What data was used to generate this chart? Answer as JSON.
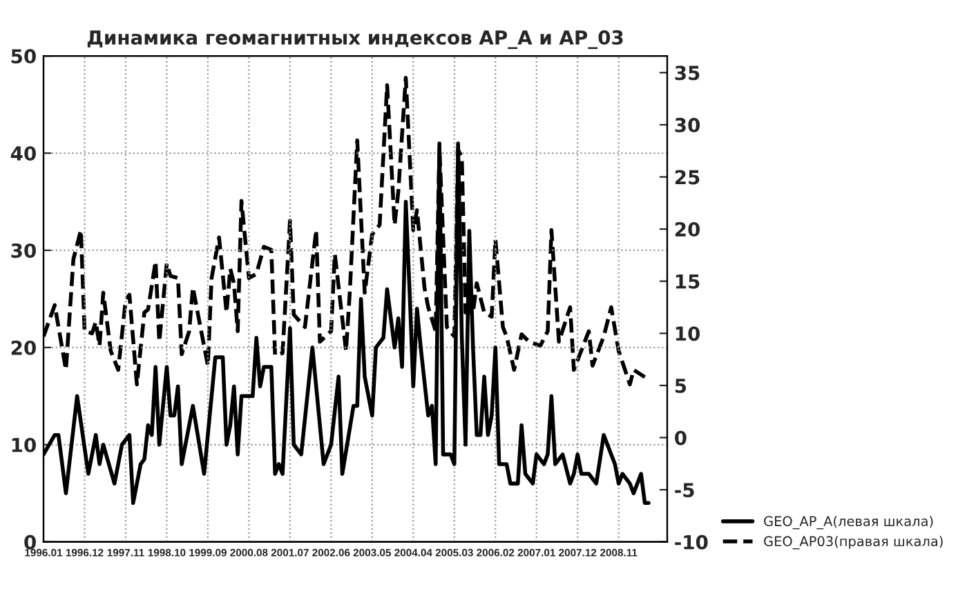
{
  "chart_data": {
    "type": "line",
    "title": "Динамика геомагнитных индексов AP_A и AP_03",
    "xlim": [
      "1996-01",
      "2009-12"
    ],
    "xticks": [
      {
        "value": "1996-01",
        "label": "1996.01"
      },
      {
        "value": "1996-12",
        "label": "1996.12"
      },
      {
        "value": "1997-11",
        "label": "1997.11"
      },
      {
        "value": "1998-10",
        "label": "1998.10"
      },
      {
        "value": "1999-09",
        "label": "1999.09"
      },
      {
        "value": "2000-08",
        "label": "2000.08"
      },
      {
        "value": "2001-07",
        "label": "2001.07"
      },
      {
        "value": "2002-06",
        "label": "2002.06"
      },
      {
        "value": "2003-05",
        "label": "2003.05"
      },
      {
        "value": "2004-04",
        "label": "2004.04"
      },
      {
        "value": "2005-03",
        "label": "2005.03"
      },
      {
        "value": "2006-02",
        "label": "2006.02"
      },
      {
        "value": "2007-01",
        "label": "2007.01"
      },
      {
        "value": "2007-12",
        "label": "2007.12"
      },
      {
        "value": "2008-11",
        "label": "2008.11"
      }
    ],
    "ylim": [
      0,
      50
    ],
    "yticks": [
      0,
      10,
      20,
      30,
      40,
      50
    ],
    "y2lim": [
      -10,
      36.6
    ],
    "y2ticks": [
      -10,
      -5,
      0,
      5,
      10,
      15,
      20,
      25,
      30,
      35
    ],
    "grid": true,
    "legend": "bottom right",
    "series": [
      {
        "name": "GEO_AP_A(левая шкала)",
        "color": "#000000",
        "line_style": "solid",
        "x": [
          "1996-01",
          "1996-04",
          "1996-05",
          "1996-07",
          "1996-10",
          "1997-01",
          "1997-03",
          "1997-04",
          "1997-05",
          "1997-08",
          "1997-10",
          "1997-12",
          "1998-01",
          "1998-03",
          "1998-04",
          "1998-05",
          "1998-06",
          "1998-07",
          "1998-08",
          "1998-10",
          "1998-11",
          "1998-12",
          "1999-01",
          "1999-02",
          "1999-05",
          "1999-08",
          "1999-11",
          "2000-01",
          "2000-02",
          "2000-03",
          "2000-04",
          "2000-05",
          "2000-06",
          "2000-09",
          "2000-10",
          "2000-11",
          "2000-12",
          "2001-02",
          "2001-03",
          "2001-04",
          "2001-05",
          "2001-07",
          "2001-08",
          "2001-10",
          "2002-01",
          "2002-04",
          "2002-06",
          "2002-08",
          "2002-09",
          "2002-12",
          "2003-01",
          "2003-02",
          "2003-03",
          "2003-05",
          "2003-06",
          "2003-08",
          "2003-09",
          "2003-11",
          "2003-12",
          "2004-01",
          "2004-02",
          "2004-03",
          "2004-04",
          "2004-05",
          "2004-06",
          "2004-08",
          "2004-09",
          "2004-10",
          "2004-11",
          "2004-12",
          "2005-02",
          "2005-03",
          "2005-04",
          "2005-05",
          "2005-06",
          "2005-07",
          "2005-08",
          "2005-09",
          "2005-10",
          "2005-11",
          "2005-12",
          "2006-01",
          "2006-02",
          "2006-03",
          "2006-05",
          "2006-06",
          "2006-08",
          "2006-09",
          "2006-10",
          "2006-12",
          "2007-01",
          "2007-03",
          "2007-04",
          "2007-05",
          "2007-06",
          "2007-08",
          "2007-10",
          "2007-11",
          "2007-12",
          "2008-01",
          "2008-03",
          "2008-05",
          "2008-07",
          "2008-10",
          "2008-11",
          "2008-12",
          "2009-02",
          "2009-03",
          "2009-05",
          "2009-06",
          "2009-07"
        ],
        "values": [
          9,
          11,
          11,
          5,
          15,
          7,
          11,
          8,
          10,
          6,
          10,
          11,
          4,
          8,
          8.5,
          12,
          11,
          18,
          10,
          18,
          13,
          13,
          16,
          8,
          14,
          7,
          19,
          19,
          10,
          12,
          16,
          9,
          15,
          15,
          21,
          16,
          18,
          18,
          7,
          8,
          7,
          22,
          10,
          9,
          20,
          8,
          10,
          17,
          7,
          14,
          14,
          25,
          17,
          13,
          20,
          21,
          26,
          20,
          23,
          18,
          35,
          26,
          16,
          24,
          20,
          13,
          14,
          8,
          41,
          9,
          9,
          8,
          41,
          21,
          10,
          32,
          20,
          11,
          11,
          17,
          11,
          13,
          20,
          8,
          8,
          6,
          6,
          12,
          7,
          6,
          9,
          8,
          9,
          15,
          8,
          9,
          6,
          7,
          9,
          7,
          7,
          6,
          11,
          8,
          6,
          7,
          6,
          5,
          7,
          4,
          4
        ]
      },
      {
        "name": "GEO_AP03(правая шкала)",
        "color": "#000000",
        "line_style": "dashed",
        "axis": "y2",
        "x": [
          "1996-01",
          "1996-04",
          "1996-07",
          "1996-09",
          "1996-11",
          "1996-12",
          "1997-02",
          "1997-03",
          "1997-04",
          "1997-05",
          "1997-07",
          "1997-09",
          "1997-11",
          "1997-12",
          "1998-02",
          "1998-04",
          "1998-05",
          "1998-07",
          "1998-08",
          "1998-10",
          "1998-11",
          "1999-01",
          "1999-02",
          "1999-04",
          "1999-05",
          "1999-06",
          "1999-09",
          "1999-10",
          "1999-12",
          "2000-02",
          "2000-03",
          "2000-04",
          "2000-05",
          "2000-06",
          "2000-08",
          "2000-10",
          "2000-12",
          "2001-02",
          "2001-03",
          "2001-05",
          "2001-07",
          "2001-08",
          "2001-11",
          "2002-02",
          "2002-03",
          "2002-06",
          "2002-07",
          "2002-10",
          "2002-11",
          "2003-01",
          "2003-03",
          "2003-05",
          "2003-07",
          "2003-09",
          "2003-11",
          "2003-12",
          "2004-02",
          "2004-04",
          "2004-05",
          "2004-07",
          "2004-08",
          "2004-10",
          "2004-11",
          "2005-01",
          "2005-03",
          "2005-04",
          "2005-05",
          "2005-06",
          "2005-08",
          "2005-09",
          "2005-11",
          "2006-01",
          "2006-02",
          "2006-04",
          "2006-05",
          "2006-07",
          "2006-09",
          "2006-11",
          "2007-02",
          "2007-04",
          "2007-05",
          "2007-07",
          "2007-10",
          "2007-11",
          "2008-03",
          "2008-04",
          "2008-07",
          "2008-09",
          "2008-11",
          "2009-02",
          "2009-03",
          "2009-06"
        ],
        "values": [
          9.7,
          12.7,
          6.5,
          17.1,
          19.9,
          10.2,
          10,
          11.1,
          8.8,
          13.9,
          8.3,
          6.5,
          13.2,
          13.7,
          5.1,
          12,
          12.3,
          16.9,
          9.2,
          16.7,
          15.5,
          15.3,
          8,
          10.2,
          14.4,
          12.5,
          6.9,
          15.3,
          19.2,
          12,
          16.2,
          14.8,
          10.2,
          22.7,
          15.3,
          15.7,
          18.3,
          18,
          7.9,
          8.1,
          20.8,
          11.8,
          10.6,
          19.9,
          9.2,
          10.2,
          17.6,
          8.3,
          13.9,
          28.5,
          13.9,
          19.5,
          20.4,
          33.8,
          20.4,
          23.6,
          34.5,
          19.9,
          21.8,
          14.4,
          12.5,
          10.2,
          27.8,
          10.6,
          9.7,
          27.6,
          26.9,
          12,
          12,
          14.8,
          12,
          11.6,
          19,
          10.6,
          9.7,
          6.5,
          9.9,
          9.2,
          8.8,
          10.2,
          19.9,
          9.2,
          12.5,
          6.5,
          10.2,
          6.9,
          9.7,
          12.5,
          8.3,
          5.1,
          6.5,
          5.8
        ]
      }
    ]
  }
}
